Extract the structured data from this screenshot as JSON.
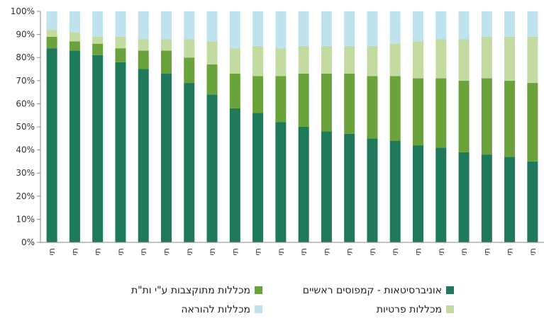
{
  "chart_data": {
    "type": "bar",
    "stacked": true,
    "categories": [
      "תש\"ן",
      "תשנ\"א",
      "תשנ\"ב",
      "תשנ\"ג",
      "תשנ\"ד",
      "תשנ\"ה",
      "תשנ\"ו",
      "תשנ\"ז",
      "תשנ\"ח",
      "תשנ\"ט",
      "תש\"ס",
      "תשס\"א",
      "תשס\"ב",
      "תשס\"ג",
      "תשס\"ד",
      "תשס\"ה",
      "תשס\"ו",
      "תשס\"ז",
      "תשס\"ח",
      "תשס\"ט",
      "תש\"ע",
      "תשע\"א"
    ],
    "series": [
      {
        "name": "אוניברסיטאות - קמפוסים ראשיים",
        "color": "#1f7a5c",
        "values": [
          84,
          83,
          81,
          78,
          75,
          73,
          69,
          64,
          58,
          56,
          52,
          50,
          48,
          47,
          45,
          44,
          42,
          41,
          39,
          38,
          37,
          35
        ]
      },
      {
        "name": "מכללות מתוקצבות ע\"י ות\"ת",
        "color": "#6aa33a",
        "values": [
          5,
          4,
          5,
          6,
          8,
          10,
          11,
          13,
          15,
          16,
          20,
          23,
          25,
          26,
          27,
          28,
          29,
          30,
          31,
          33,
          33,
          34
        ]
      },
      {
        "name": "מכללות פרטיות",
        "color": "#c3dba0",
        "values": [
          3,
          4,
          3,
          5,
          5,
          5,
          8,
          10,
          11,
          13,
          12,
          12,
          12,
          12,
          13,
          14,
          16,
          17,
          18,
          18,
          19,
          20
        ]
      },
      {
        "name": "מכללות להוראה",
        "color": "#bfe3ee",
        "values": [
          8,
          9,
          11,
          11,
          12,
          12,
          12,
          13,
          16,
          15,
          16,
          15,
          15,
          15,
          15,
          14,
          13,
          12,
          12,
          11,
          11,
          11
        ]
      }
    ],
    "ylim": [
      0,
      100
    ],
    "yticks": [
      "0%",
      "10%",
      "20%",
      "30%",
      "40%",
      "50%",
      "60%",
      "70%",
      "80%",
      "90%",
      "100%"
    ],
    "grid": false,
    "legend_position": "bottom"
  }
}
